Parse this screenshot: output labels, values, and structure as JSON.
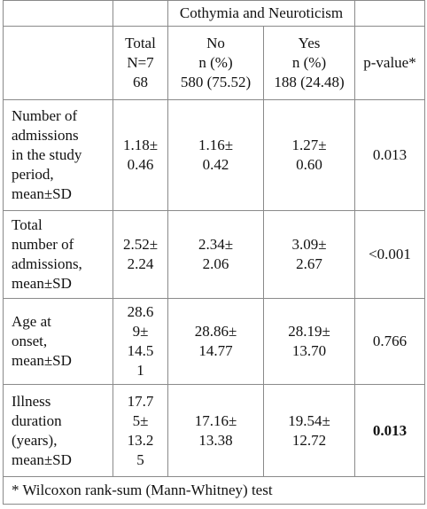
{
  "table": {
    "group_header": "Cothymia and Neuroticism",
    "columns": {
      "total": "Total\nN=7\n68",
      "no": "No\nn (%)\n580 (75.52)",
      "yes": "Yes\nn (%)\n188 (24.48)",
      "pvalue": "p-value*"
    },
    "rows": [
      {
        "label": "Number of\nadmissions\nin the study\nperiod,\nmean±SD",
        "total": "1.18±\n0.46",
        "no": "1.16±\n0.42",
        "yes": "1.27±\n0.60",
        "pvalue": "0.013"
      },
      {
        "label": "Total\nnumber of\nadmissions,\nmean±SD",
        "total": "2.52±\n2.24",
        "no": "2.34±\n2.06",
        "yes": "3.09±\n2.67",
        "pvalue": "<0.001"
      },
      {
        "label": "Age at\nonset,\nmean±SD",
        "total": "28.6\n9±\n14.5\n1",
        "no": "28.86±\n14.77",
        "yes": "28.19±\n13.70",
        "pvalue": "0.766"
      },
      {
        "label": "Illness\nduration\n(years),\nmean±SD",
        "total": "17.7\n5±\n13.2\n5",
        "no": "17.16±\n13.38",
        "yes": "19.54±\n12.72",
        "pvalue": "0.013"
      }
    ],
    "footnote": "* Wilcoxon rank-sum (Mann-Whitney) test"
  }
}
